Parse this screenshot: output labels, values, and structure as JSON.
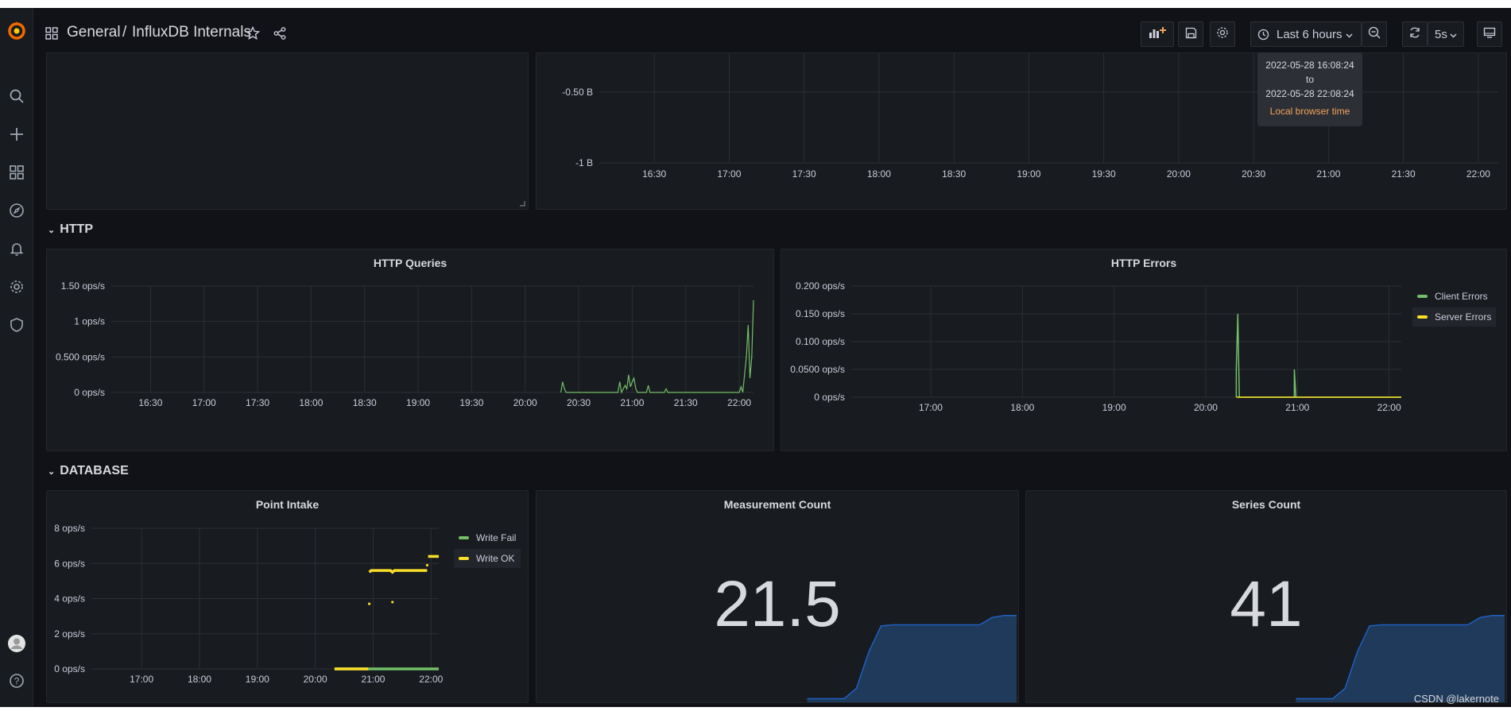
{
  "breadcrumb": {
    "folder": "General",
    "separator": "/",
    "dashboard": "InfluxDB Internals"
  },
  "toolbar": {
    "time_range": "Last 6 hours",
    "refresh_interval": "5s"
  },
  "time_tooltip": {
    "from": "2022-05-28 16:08:24",
    "to_label": "to",
    "to": "2022-05-28 22:08:24",
    "zone": "Local browser time"
  },
  "rows": [
    {
      "title": "HTTP"
    },
    {
      "title": "DATABASE"
    }
  ],
  "panels": {
    "top_right": {
      "chart_data": {
        "type": "line",
        "title": "",
        "yticks": [
          "-0.50 B",
          "-1 B"
        ],
        "x_ticks": [
          "16:30",
          "17:00",
          "17:30",
          "18:00",
          "18:30",
          "19:00",
          "19:30",
          "20:00",
          "20:30",
          "21:00",
          "21:30",
          "22:00"
        ],
        "series": []
      }
    },
    "http_queries": {
      "title": "HTTP Queries",
      "chart_data": {
        "type": "line",
        "title": "HTTP Queries",
        "y_ticks": [
          "0 ops/s",
          "0.500 ops/s",
          "1 ops/s",
          "1.50 ops/s"
        ],
        "ylim": [
          0,
          1.5
        ],
        "x_ticks": [
          "16:30",
          "17:00",
          "17:30",
          "18:00",
          "18:30",
          "19:00",
          "19:30",
          "20:00",
          "20:30",
          "21:00",
          "21:30",
          "22:00"
        ],
        "series": [
          {
            "color": "#73bf69",
            "points": [
              [
                "20:20",
                0
              ],
              [
                "20:21",
                0.15
              ],
              [
                "20:22",
                0.05
              ],
              [
                "20:23",
                0
              ],
              [
                "20:52",
                0
              ],
              [
                "20:53",
                0.15
              ],
              [
                "20:54",
                0
              ],
              [
                "20:56",
                0.1
              ],
              [
                "20:57",
                0.05
              ],
              [
                "20:58",
                0.25
              ],
              [
                "20:59",
                0.08
              ],
              [
                "21:00",
                0.15
              ],
              [
                "21:01",
                0.2
              ],
              [
                "21:02",
                0.05
              ],
              [
                "21:03",
                0
              ],
              [
                "21:08",
                0
              ],
              [
                "21:09",
                0.1
              ],
              [
                "21:10",
                0
              ],
              [
                "21:18",
                0
              ],
              [
                "21:19",
                0.05
              ],
              [
                "21:20",
                0
              ],
              [
                "22:00",
                0
              ],
              [
                "22:01",
                0.08
              ],
              [
                "22:02",
                0
              ],
              [
                "22:04",
                0.5
              ],
              [
                "22:05",
                0.95
              ],
              [
                "22:06",
                0.2
              ],
              [
                "22:07",
                0.5
              ],
              [
                "22:08",
                1.3
              ]
            ]
          }
        ]
      }
    },
    "http_errors": {
      "title": "HTTP Errors",
      "chart_data": {
        "type": "line",
        "title": "HTTP Errors",
        "y_ticks": [
          "0 ops/s",
          "0.0500 ops/s",
          "0.100 ops/s",
          "0.150 ops/s",
          "0.200 ops/s"
        ],
        "ylim": [
          0,
          0.2
        ],
        "x_ticks": [
          "17:00",
          "18:00",
          "19:00",
          "20:00",
          "21:00",
          "22:00"
        ],
        "legend_position": "right",
        "series": [
          {
            "name": "Client Errors",
            "color": "#73bf69",
            "points": [
              [
                "20:20",
                0
              ],
              [
                "20:20",
                0.05
              ],
              [
                "20:21",
                0.15
              ],
              [
                "20:22",
                0
              ],
              [
                "20:58",
                0
              ],
              [
                "20:58",
                0.05
              ],
              [
                "20:59",
                0
              ],
              [
                "22:08",
                0
              ]
            ]
          },
          {
            "name": "Server Errors",
            "color": "#fade2a",
            "points": [
              [
                "20:20",
                0
              ],
              [
                "22:08",
                0
              ]
            ]
          }
        ]
      }
    },
    "point_intake": {
      "title": "Point Intake",
      "chart_data": {
        "type": "line",
        "title": "Point Intake",
        "y_ticks": [
          "0 ops/s",
          "2 ops/s",
          "4 ops/s",
          "6 ops/s",
          "8 ops/s"
        ],
        "ylim": [
          0,
          8
        ],
        "x_ticks": [
          "17:00",
          "18:00",
          "19:00",
          "20:00",
          "21:00",
          "22:00"
        ],
        "legend_position": "right",
        "series": [
          {
            "name": "Write Fail",
            "color": "#73bf69",
            "points": [
              [
                "20:20",
                0
              ],
              [
                "22:08",
                0
              ]
            ]
          },
          {
            "name": "Write OK",
            "color": "#fade2a",
            "points": [
              [
                "20:20",
                0
              ],
              [
                "20:55",
                0
              ]
            ],
            "segments": [
              [
                [
                  "20:56",
                  5.5
                ],
                [
                  "20:58",
                  5.6
                ],
                [
                  "21:18",
                  5.6
                ],
                [
                  "21:20",
                  5.5
                ],
                [
                  "21:22",
                  5.6
                ],
                [
                  "21:56",
                  5.6
                ]
              ],
              [
                [
                  "21:57",
                  6.4
                ],
                [
                  "22:08",
                  6.4
                ]
              ]
            ],
            "dots": [
              [
                "20:56",
                3.7
              ],
              [
                "21:20",
                3.8
              ],
              [
                "21:56",
                5.9
              ]
            ]
          }
        ]
      }
    },
    "measurement_count": {
      "title": "Measurement Count",
      "value": "21.5",
      "sparkline": [
        0.05,
        0.05,
        0.05,
        0.05,
        0.15,
        0.5,
        0.75,
        0.76,
        0.76,
        0.76,
        0.76,
        0.76,
        0.76,
        0.76,
        0.76,
        0.83,
        0.85,
        0.85
      ]
    },
    "series_count": {
      "title": "Series Count",
      "value": "41",
      "sparkline": [
        0.05,
        0.05,
        0.05,
        0.05,
        0.15,
        0.5,
        0.75,
        0.76,
        0.76,
        0.76,
        0.76,
        0.76,
        0.76,
        0.76,
        0.76,
        0.83,
        0.85,
        0.85
      ]
    }
  },
  "watermark": "CSDN @lakernote",
  "colors": {
    "bg": "#111217",
    "panel": "#181b1f",
    "grid": "#2c2f35",
    "green": "#73bf69",
    "yellow": "#fade2a",
    "spark": "#1f60c4"
  }
}
